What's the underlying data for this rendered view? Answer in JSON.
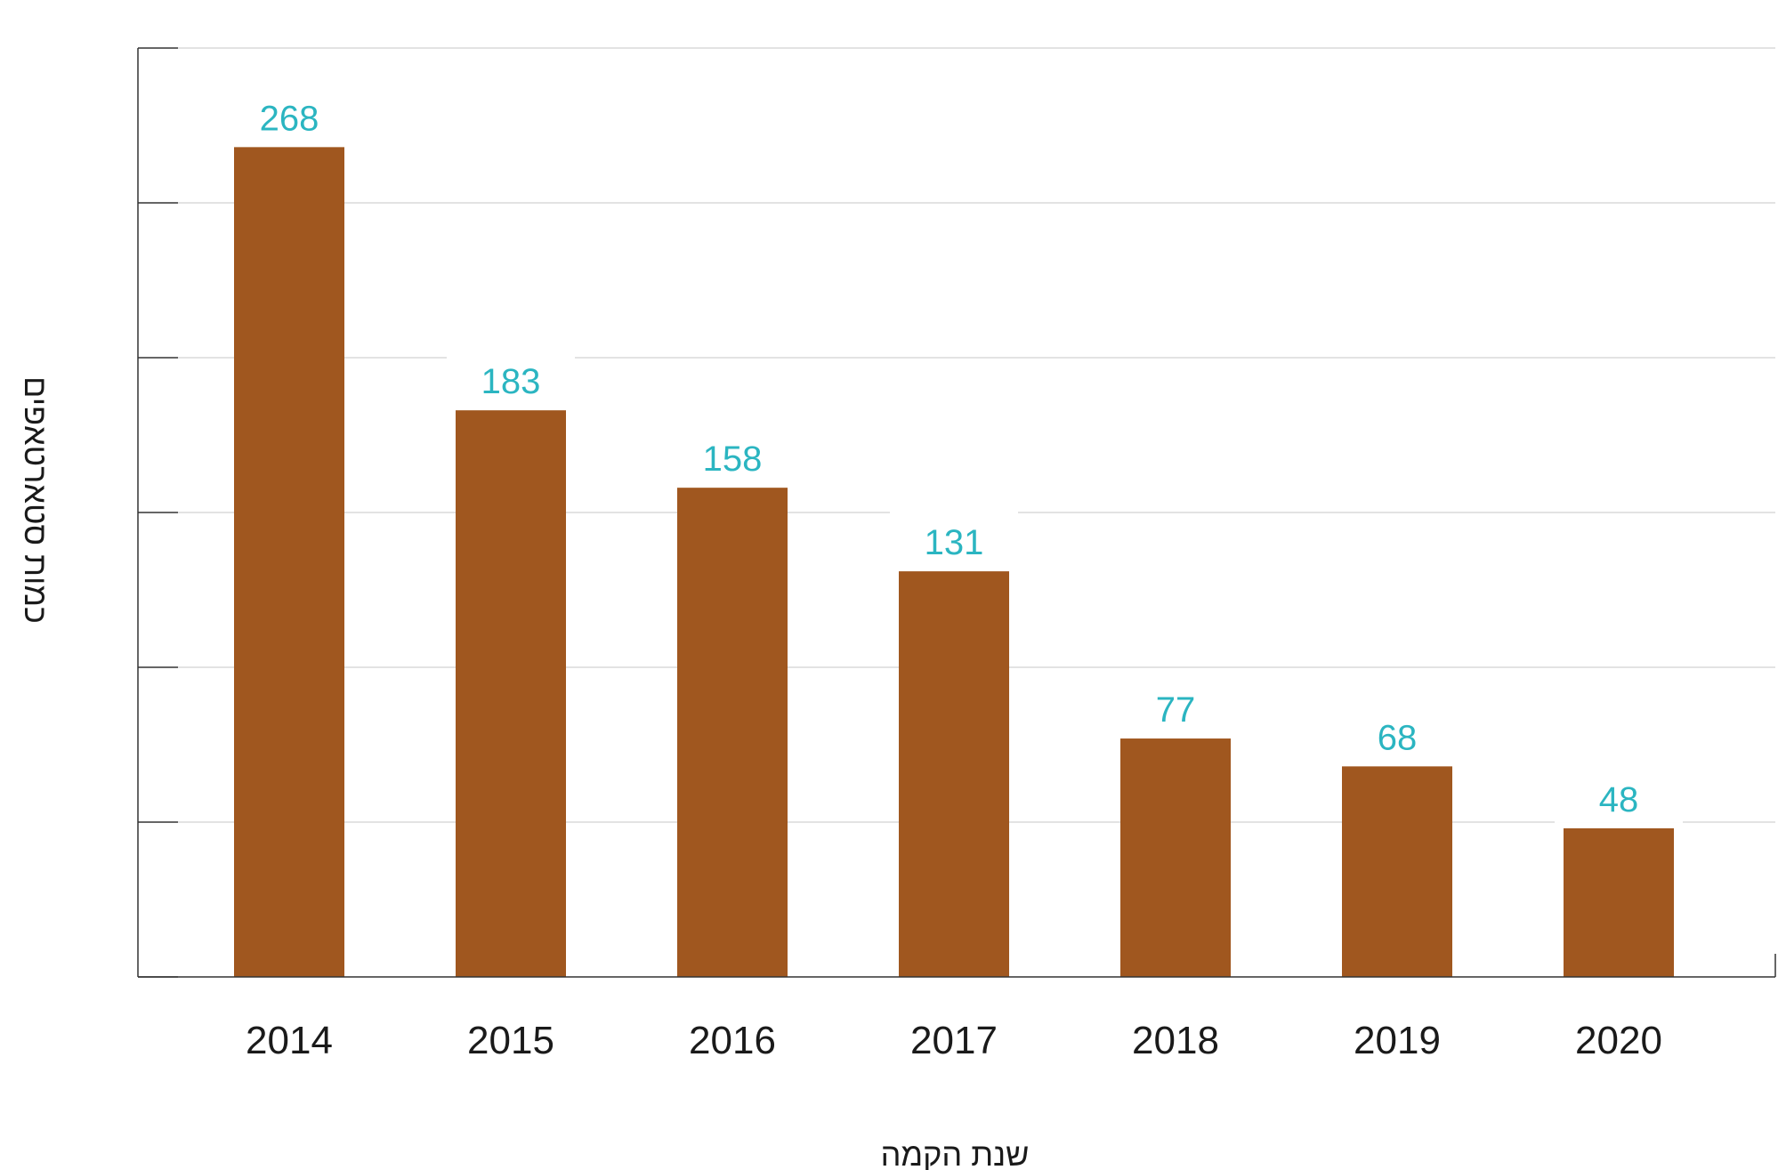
{
  "chart_data": {
    "type": "bar",
    "categories": [
      "2014",
      "2015",
      "2016",
      "2017",
      "2018",
      "2019",
      "2020"
    ],
    "values": [
      268,
      183,
      158,
      131,
      77,
      68,
      48
    ],
    "data_labels": [
      "268",
      "183",
      "158",
      "131",
      "77",
      "68",
      "48"
    ],
    "title": "",
    "xlabel": "שנת הקמה",
    "ylabel": "כמות סטארטאפים",
    "ylim": [
      0,
      300
    ],
    "y_tick_count": 7,
    "y_tick_labels_shown": false,
    "grid": true,
    "legend": "none",
    "colors": {
      "bar": "#a0571f",
      "data_label": "#2bb5c1",
      "grid": "#e3e3e3",
      "axis": "#333333"
    }
  }
}
